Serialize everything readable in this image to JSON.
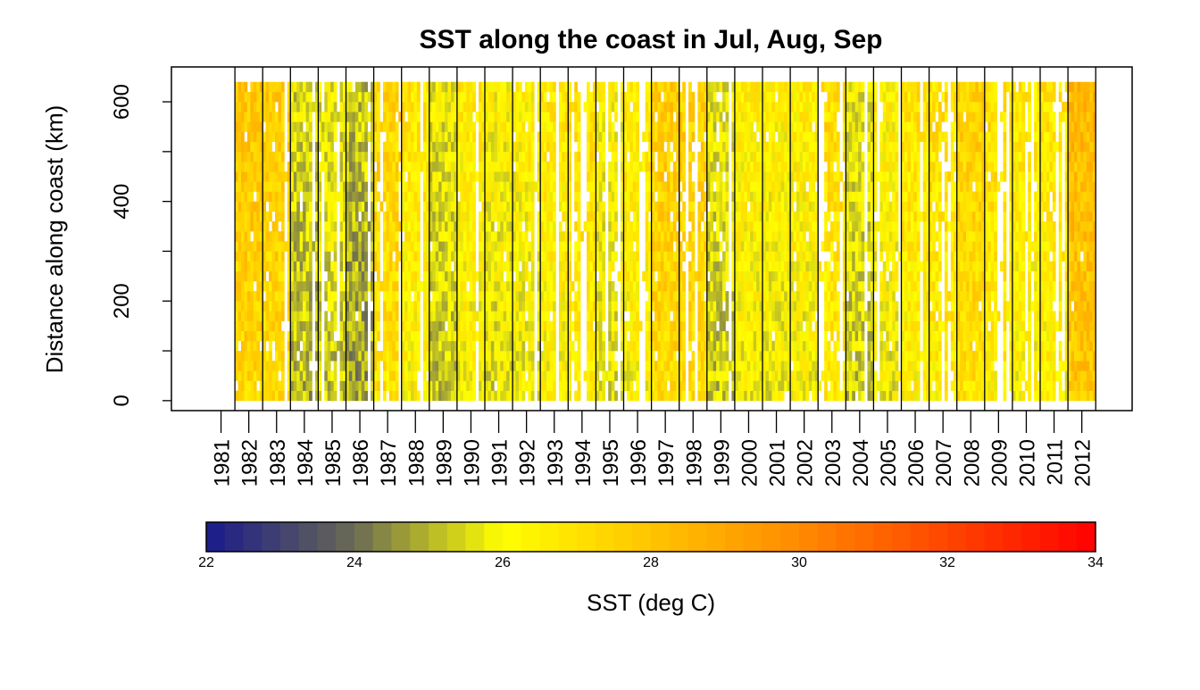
{
  "chart_data": {
    "type": "heatmap",
    "title": "SST along the coast in Jul, Aug, Sep",
    "ylabel": "Distance along coast (km)",
    "xlabel": "",
    "ylim": [
      -20,
      670
    ],
    "yticks": [
      0,
      200,
      400,
      600
    ],
    "distance_range_km": [
      0,
      640
    ],
    "distance_cell_km": 20,
    "months_per_year": [
      "Jul",
      "Aug",
      "Sep"
    ],
    "years": [
      1981,
      1982,
      1983,
      1984,
      1985,
      1986,
      1987,
      1988,
      1989,
      1990,
      1991,
      1992,
      1993,
      1994,
      1995,
      1996,
      1997,
      1998,
      1999,
      2000,
      2001,
      2002,
      2003,
      2004,
      2005,
      2006,
      2007,
      2008,
      2009,
      2010,
      2011,
      2012
    ],
    "year_mean_sst": [
      null,
      27.6,
      27.5,
      25.3,
      25.6,
      25.0,
      27.2,
      26.6,
      25.6,
      26.4,
      26.0,
      26.2,
      26.5,
      26.8,
      26.0,
      26.5,
      27.5,
      27.4,
      25.6,
      26.3,
      26.2,
      26.3,
      26.9,
      25.6,
      26.2,
      26.7,
      26.8,
      27.3,
      26.8,
      26.5,
      26.6,
      28.1
    ],
    "missing_fraction": [
      1.0,
      0.15,
      0.35,
      0.15,
      0.3,
      0.1,
      0.25,
      0.15,
      0.1,
      0.2,
      0.1,
      0.25,
      0.1,
      0.35,
      0.35,
      0.3,
      0.3,
      0.35,
      0.35,
      0.05,
      0.1,
      0.15,
      0.45,
      0.1,
      0.35,
      0.05,
      0.35,
      0.1,
      0.15,
      0.1,
      0.15,
      0.05
    ],
    "colorbar": {
      "label": "SST (deg C)",
      "range": [
        22,
        34
      ],
      "ticks": [
        22,
        24,
        26,
        28,
        30,
        32,
        34
      ],
      "stops": [
        {
          "value": 22,
          "color": "#1a1a8c"
        },
        {
          "value": 24,
          "color": "#6a6a55"
        },
        {
          "value": 26,
          "color": "#ffff00"
        },
        {
          "value": 28,
          "color": "#ffc400"
        },
        {
          "value": 30,
          "color": "#ff8a00"
        },
        {
          "value": 34,
          "color": "#ff0000"
        }
      ]
    },
    "missing_color": "#ffffff"
  }
}
